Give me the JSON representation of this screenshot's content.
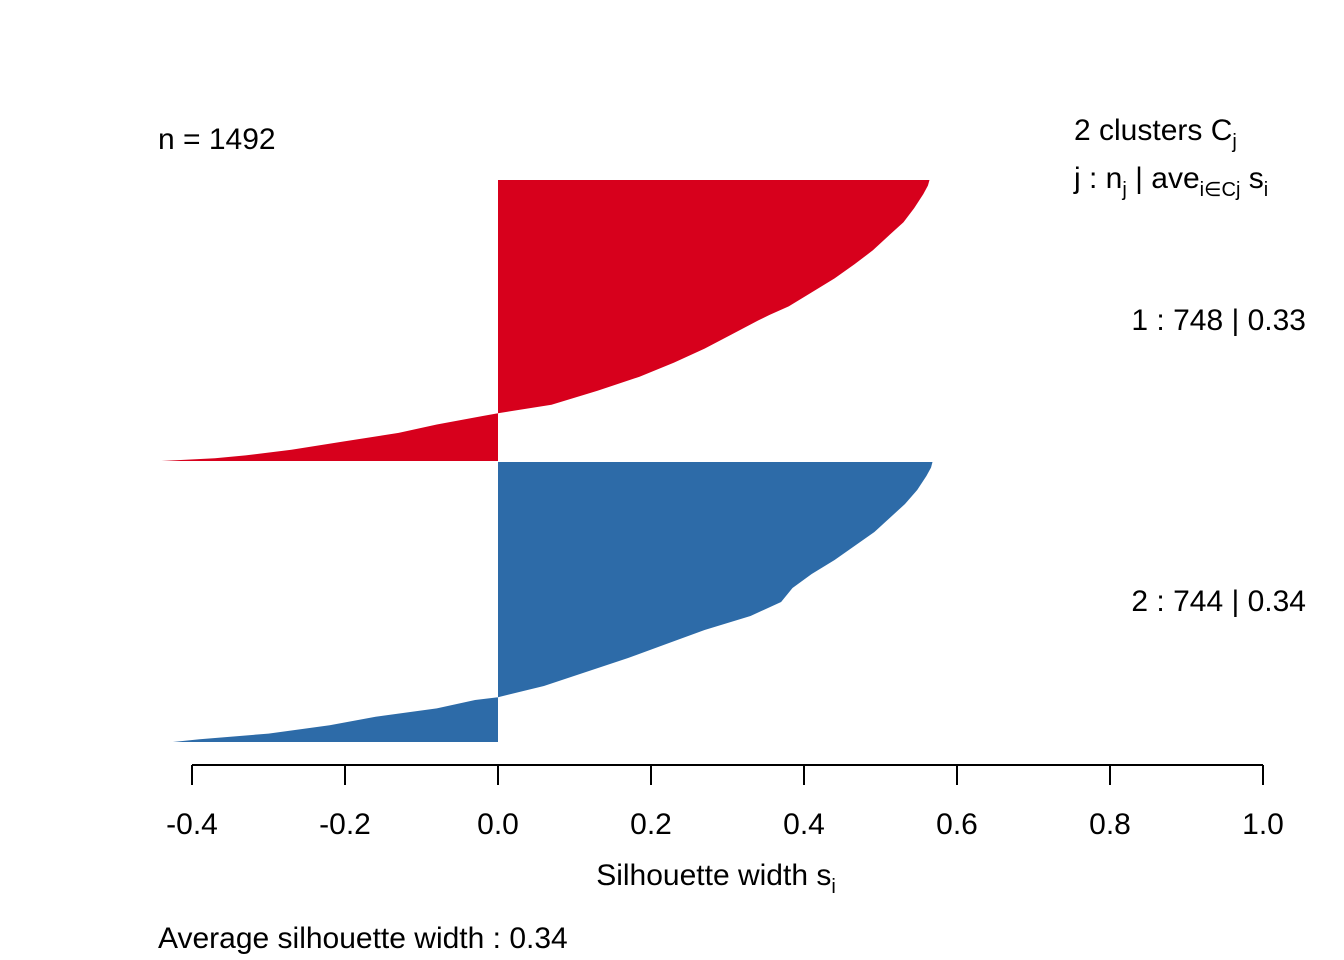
{
  "chart_data": {
    "type": "bar",
    "orientation": "horizontal",
    "n_label": "n = 1492",
    "header_line1": {
      "prefix": "2  clusters  C",
      "sub": "j"
    },
    "header_line2": {
      "p1": "j :  n",
      "s1": "j",
      "p2": " | ave",
      "s2": "i∈Cj",
      "p3": "  s",
      "s3": "i"
    },
    "xlabel": {
      "main": "Silhouette width s",
      "sub": "i"
    },
    "footer": "Average silhouette width :  0.34",
    "xlim": [
      -0.4,
      1.0
    ],
    "x_ticks": [
      -0.4,
      -0.2,
      0.0,
      0.2,
      0.4,
      0.6,
      0.8,
      1.0
    ],
    "x_tick_labels": [
      "-0.4",
      "-0.2",
      "0.0",
      "0.2",
      "0.4",
      "0.6",
      "0.8",
      "1.0"
    ],
    "grid": false,
    "legend": "none",
    "clusters": [
      {
        "id": 1,
        "n": 748,
        "ave": 0.33,
        "label": "1 :   748  |  0.33",
        "color": "#D7001C",
        "profile": [
          [
            0.0,
            0.564
          ],
          [
            0.02,
            0.562
          ],
          [
            0.05,
            0.556
          ],
          [
            0.1,
            0.544
          ],
          [
            0.15,
            0.53
          ],
          [
            0.2,
            0.51
          ],
          [
            0.25,
            0.49
          ],
          [
            0.3,
            0.466
          ],
          [
            0.35,
            0.44
          ],
          [
            0.4,
            0.41
          ],
          [
            0.45,
            0.38
          ],
          [
            0.48,
            0.355
          ],
          [
            0.5,
            0.34
          ],
          [
            0.55,
            0.305
          ],
          [
            0.6,
            0.27
          ],
          [
            0.65,
            0.23
          ],
          [
            0.7,
            0.185
          ],
          [
            0.75,
            0.13
          ],
          [
            0.8,
            0.07
          ],
          [
            0.83,
            0.0
          ],
          [
            0.84,
            -0.02
          ],
          [
            0.87,
            -0.08
          ],
          [
            0.9,
            -0.13
          ],
          [
            0.93,
            -0.2
          ],
          [
            0.96,
            -0.27
          ],
          [
            0.98,
            -0.33
          ],
          [
            0.99,
            -0.37
          ],
          [
            1.0,
            -0.44
          ]
        ]
      },
      {
        "id": 2,
        "n": 744,
        "ave": 0.34,
        "label": "2 :   744  |  0.34",
        "color": "#2D6BA8",
        "profile": [
          [
            0.0,
            0.568
          ],
          [
            0.02,
            0.566
          ],
          [
            0.05,
            0.56
          ],
          [
            0.1,
            0.548
          ],
          [
            0.15,
            0.532
          ],
          [
            0.2,
            0.512
          ],
          [
            0.25,
            0.492
          ],
          [
            0.3,
            0.466
          ],
          [
            0.35,
            0.44
          ],
          [
            0.4,
            0.41
          ],
          [
            0.45,
            0.385
          ],
          [
            0.5,
            0.37
          ],
          [
            0.55,
            0.33
          ],
          [
            0.6,
            0.27
          ],
          [
            0.65,
            0.22
          ],
          [
            0.7,
            0.17
          ],
          [
            0.75,
            0.115
          ],
          [
            0.8,
            0.06
          ],
          [
            0.84,
            0.0
          ],
          [
            0.85,
            -0.03
          ],
          [
            0.88,
            -0.08
          ],
          [
            0.91,
            -0.16
          ],
          [
            0.94,
            -0.22
          ],
          [
            0.97,
            -0.3
          ],
          [
            0.99,
            -0.39
          ],
          [
            1.0,
            -0.425
          ]
        ]
      }
    ]
  }
}
